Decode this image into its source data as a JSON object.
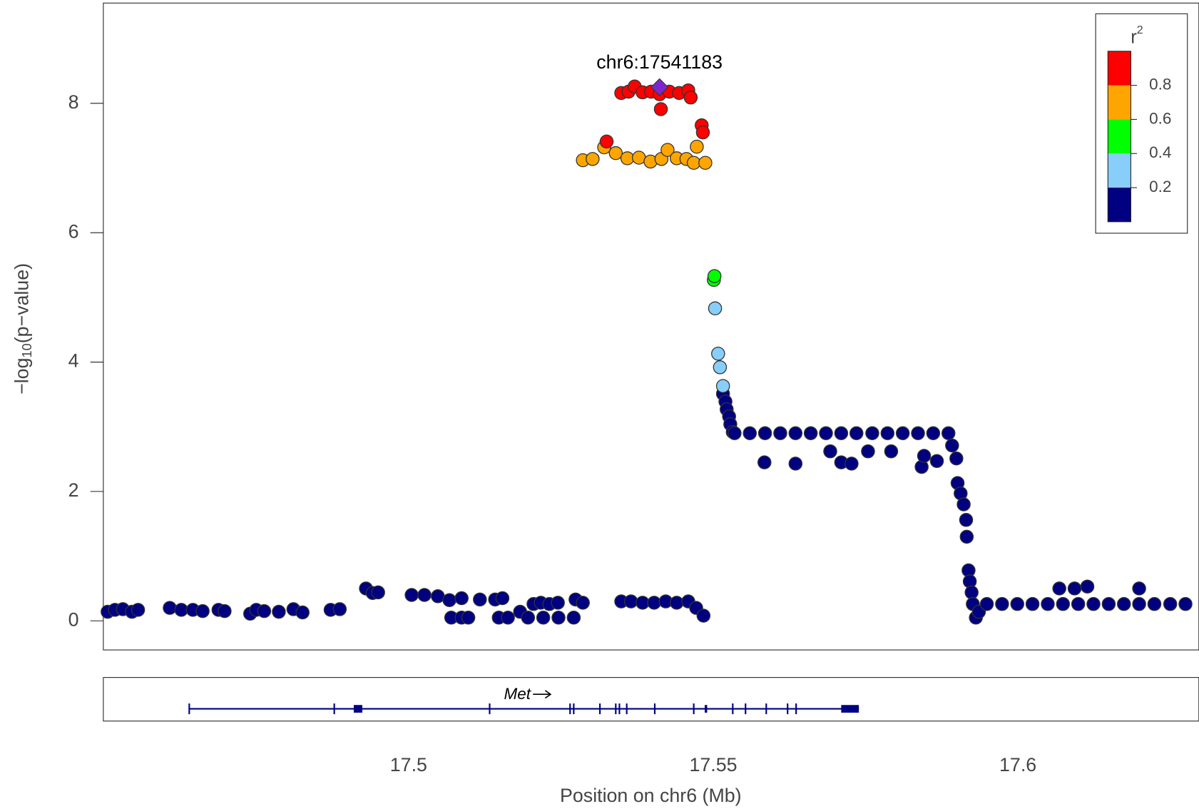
{
  "chart_data": {
    "type": "scatter",
    "xlabel": "Position on chr6 (Mb)",
    "ylabel": {
      "prefix": "−log",
      "subscript": "10",
      "suffix": "(p−value)"
    },
    "xlim": [
      17.4499,
      17.6297
    ],
    "ylim": [
      -0.45,
      9.55
    ],
    "xticks": [
      17.5,
      17.55,
      17.6
    ],
    "yticks": [
      0,
      2,
      4,
      6,
      8
    ],
    "series": [
      {
        "color": "#000080",
        "x": [
          17.4506,
          17.4518,
          17.4531,
          17.4546,
          17.4556,
          17.4608,
          17.4627,
          17.4646,
          17.4662,
          17.4688,
          17.4698,
          17.474,
          17.475,
          17.4763,
          17.4787,
          17.4811,
          17.4826,
          17.4872,
          17.4887,
          17.493,
          17.4941,
          17.495,
          17.5005,
          17.5026,
          17.5048,
          17.5067,
          17.5087,
          17.507,
          17.5087,
          17.5098,
          17.5117,
          17.5142,
          17.5154,
          17.5148,
          17.5163,
          17.5183,
          17.5205,
          17.5217,
          17.5231,
          17.5245,
          17.5196,
          17.5221,
          17.5246,
          17.5271,
          17.5274,
          17.5286,
          17.5349,
          17.5365,
          17.5384,
          17.5403,
          17.5422,
          17.544,
          17.5459,
          17.5472,
          17.5484,
          17.5516,
          17.552,
          17.5522,
          17.5526,
          17.5528,
          17.5532,
          17.5535,
          17.556,
          17.5585,
          17.561,
          17.5635,
          17.566,
          17.5685,
          17.571,
          17.5735,
          17.5761,
          17.5786,
          17.5811,
          17.5836,
          17.5861,
          17.5886,
          17.5584,
          17.5635,
          17.5692,
          17.571,
          17.5727,
          17.5754,
          17.5792,
          17.5842,
          17.5867,
          17.5846,
          17.5892,
          17.5899,
          17.5901,
          17.5906,
          17.5911,
          17.5915,
          17.5916,
          17.5919,
          17.5921,
          17.5924,
          17.5926,
          17.5931,
          17.5936,
          17.5949,
          17.5974,
          17.5999,
          17.6024,
          17.6049,
          17.6074,
          17.6099,
          17.6124,
          17.6149,
          17.6174,
          17.6199,
          17.6224,
          17.625,
          17.6275,
          17.6068,
          17.6093,
          17.6114,
          17.6199
        ],
        "values": [
          0.14,
          0.17,
          0.18,
          0.14,
          0.17,
          0.2,
          0.17,
          0.17,
          0.15,
          0.17,
          0.15,
          0.11,
          0.17,
          0.15,
          0.14,
          0.18,
          0.13,
          0.17,
          0.18,
          0.5,
          0.43,
          0.44,
          0.4,
          0.4,
          0.38,
          0.32,
          0.35,
          0.05,
          0.05,
          0.05,
          0.33,
          0.33,
          0.35,
          0.05,
          0.05,
          0.14,
          0.26,
          0.28,
          0.26,
          0.28,
          0.05,
          0.05,
          0.05,
          0.05,
          0.33,
          0.28,
          0.3,
          0.3,
          0.28,
          0.28,
          0.3,
          0.28,
          0.3,
          0.2,
          0.08,
          3.51,
          3.39,
          3.27,
          3.16,
          3.04,
          2.92,
          2.9,
          2.9,
          2.9,
          2.9,
          2.9,
          2.9,
          2.9,
          2.9,
          2.9,
          2.9,
          2.9,
          2.9,
          2.9,
          2.9,
          2.9,
          2.45,
          2.43,
          2.62,
          2.45,
          2.43,
          2.62,
          2.62,
          2.38,
          2.47,
          2.55,
          2.71,
          2.51,
          2.13,
          1.97,
          1.8,
          1.56,
          1.3,
          0.78,
          0.61,
          0.44,
          0.26,
          0.05,
          0.14,
          0.26,
          0.26,
          0.26,
          0.26,
          0.26,
          0.26,
          0.26,
          0.26,
          0.26,
          0.26,
          0.26,
          0.26,
          0.26,
          0.26,
          0.5,
          0.5,
          0.53,
          0.5
        ]
      },
      {
        "color": "#87CEFA",
        "x": [
          17.5503,
          17.5508,
          17.5511,
          17.5516
        ],
        "values": [
          4.83,
          4.13,
          3.92,
          3.63
        ]
      },
      {
        "color": "#00FF00",
        "x": [
          17.5501,
          17.5502
        ],
        "values": [
          5.27,
          5.33
        ]
      },
      {
        "color": "#FFA500",
        "x": [
          17.5286,
          17.5302,
          17.5321,
          17.534,
          17.5359,
          17.5378,
          17.5397,
          17.5415,
          17.5425,
          17.544,
          17.5456,
          17.5468,
          17.5473,
          17.5487
        ],
        "values": [
          7.12,
          7.14,
          7.32,
          7.23,
          7.15,
          7.16,
          7.1,
          7.14,
          7.28,
          7.15,
          7.14,
          7.08,
          7.33,
          7.08
        ]
      },
      {
        "color": "#FF0000",
        "x": [
          17.5325,
          17.5349,
          17.5361,
          17.5371,
          17.5384,
          17.5398,
          17.5412,
          17.5414,
          17.5428,
          17.5444,
          17.5459,
          17.5463,
          17.5481,
          17.5483
        ],
        "values": [
          7.41,
          8.16,
          8.18,
          8.26,
          8.17,
          8.18,
          8.14,
          7.91,
          8.18,
          8.16,
          8.2,
          8.09,
          7.66,
          7.55
        ]
      }
    ],
    "lead": {
      "label": "chr6:17541183",
      "x": 17.541183,
      "value": 8.25,
      "color": "#7D26CD"
    },
    "legend": {
      "title": "r",
      "superscript": "2",
      "lim": [
        0,
        1
      ],
      "ticks": [
        0.2,
        0.4,
        0.6,
        0.8
      ],
      "colors": [
        "#000080",
        "#87CEFA",
        "#00FF00",
        "#FFA500",
        "#FF0000"
      ],
      "corner": "top-right"
    },
    "gene": {
      "name": "Met",
      "start": 17.464,
      "end": 17.5739,
      "color": "#000080",
      "exons": [
        [
          17.464,
          17.4641
        ],
        [
          17.4878,
          17.4879
        ],
        [
          17.491,
          17.4924
        ],
        [
          17.5133,
          17.5134
        ],
        [
          17.5265,
          17.5266
        ],
        [
          17.5271,
          17.5272
        ],
        [
          17.5314,
          17.5315
        ],
        [
          17.534,
          17.5341
        ],
        [
          17.5346,
          17.5347
        ],
        [
          17.5358,
          17.5359
        ],
        [
          17.5404,
          17.5405
        ],
        [
          17.5468,
          17.5469
        ],
        [
          17.5486,
          17.549
        ],
        [
          17.5532,
          17.5533
        ],
        [
          17.5553,
          17.5554
        ],
        [
          17.5587,
          17.5588
        ],
        [
          17.5622,
          17.5623
        ],
        [
          17.5636,
          17.5637
        ],
        [
          17.571,
          17.5739
        ]
      ]
    }
  }
}
